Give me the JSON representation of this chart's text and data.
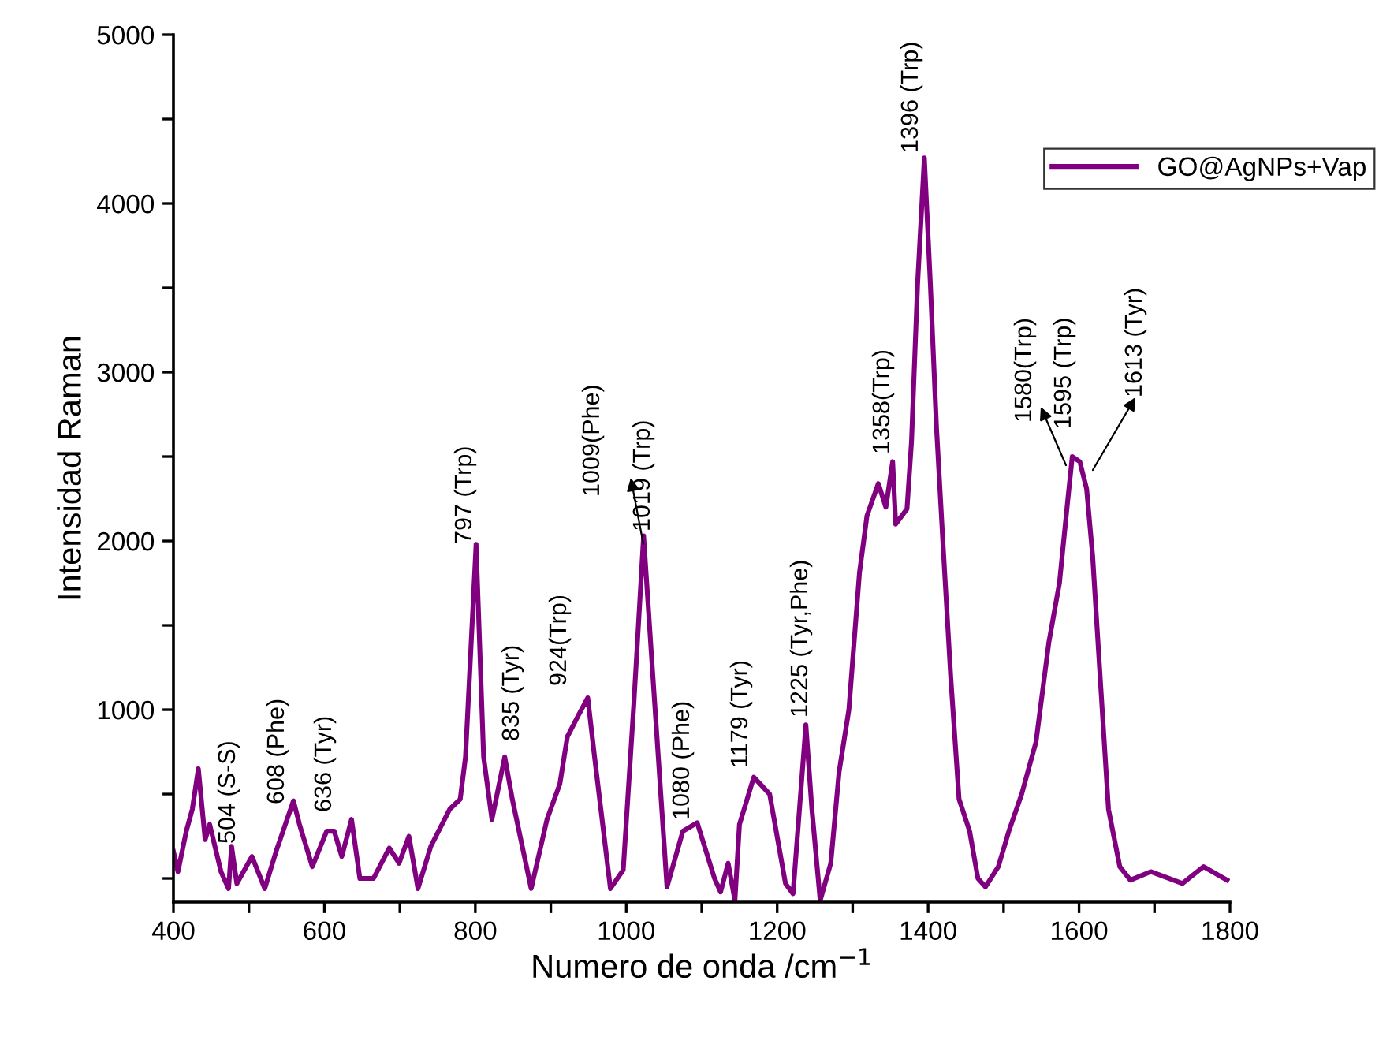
{
  "chart_data": {
    "type": "line",
    "xlabel": "Numero de onda /cm$^{−1}$",
    "ylabel": "Intensidad Raman",
    "xlim": [
      400,
      1800
    ],
    "ylim": [
      -140,
      5000
    ],
    "xticks": [
      400,
      {
        "value": 500,
        "label": null
      },
      600,
      {
        "value": 700,
        "label": null
      },
      800,
      {
        "value": 900,
        "label": null
      },
      1000,
      {
        "value": 1100,
        "label": null
      },
      1200,
      {
        "value": 1300,
        "label": null
      },
      1400,
      {
        "value": 1500,
        "label": null
      },
      1600,
      {
        "value": 1700,
        "label": null
      },
      1800
    ],
    "yticks": [
      {
        "value": 0,
        "label": null
      },
      {
        "value": 500,
        "label": null
      },
      1000,
      {
        "value": 1500,
        "label": null
      },
      2000,
      {
        "value": 2500,
        "label": null
      },
      3000,
      {
        "value": 3500,
        "label": null
      },
      4000,
      {
        "value": 4500,
        "label": null
      },
      5000
    ],
    "grid": false,
    "legend": "top right",
    "marker": "none",
    "line_style": "solid",
    "series": [
      {
        "name": "GO@AgNPs+Vap",
        "color": "#800080",
        "x": [
          400,
          406,
          417,
          425,
          433,
          442,
          448,
          463,
          473,
          477,
          484,
          504,
          521,
          536,
          559,
          567,
          584,
          603,
          613,
          623,
          636,
          647,
          665,
          686,
          699,
          712,
          724,
          741,
          766,
          780,
          787,
          801,
          811,
          822,
          839,
          849,
          874,
          895,
          912,
          922,
          937,
          949,
          958,
          979,
          996,
          1010,
          1023,
          1033,
          1054,
          1075,
          1094,
          1117,
          1125,
          1135,
          1144,
          1150,
          1169,
          1190,
          1211,
          1221,
          1238,
          1246,
          1257,
          1271,
          1282,
          1295,
          1309,
          1319,
          1334,
          1344,
          1353,
          1357,
          1372,
          1378,
          1386,
          1395,
          1403,
          1411,
          1420,
          1430,
          1441,
          1455,
          1466,
          1476,
          1493,
          1507,
          1524,
          1543,
          1560,
          1574,
          1585,
          1591,
          1601,
          1610,
          1618,
          1628,
          1639,
          1654,
          1668,
          1695,
          1737,
          1765,
          1796
        ],
        "values": [
          160,
          40,
          280,
          410,
          650,
          230,
          320,
          40,
          -60,
          190,
          -30,
          130,
          -60,
          160,
          460,
          320,
          70,
          280,
          280,
          130,
          350,
          0,
          0,
          180,
          90,
          250,
          -60,
          190,
          410,
          470,
          720,
          1980,
          720,
          350,
          720,
          470,
          -60,
          350,
          560,
          840,
          970,
          1070,
          720,
          -60,
          50,
          1030,
          2030,
          1350,
          -50,
          280,
          330,
          0,
          -80,
          90,
          -130,
          320,
          600,
          500,
          -30,
          -90,
          910,
          410,
          -130,
          90,
          630,
          1000,
          1810,
          2150,
          2340,
          2200,
          2470,
          2100,
          2190,
          2590,
          3520,
          4270,
          3520,
          2680,
          1960,
          1190,
          470,
          280,
          0,
          -50,
          70,
          280,
          500,
          810,
          1400,
          1750,
          2240,
          2500,
          2470,
          2310,
          1910,
          1190,
          410,
          70,
          -10,
          40,
          -30,
          70,
          -10
        ]
      }
    ],
    "annotations": [
      "504 (S-S)",
      "608 (Phe)",
      "636 (Tyr)",
      "797 (Trp)",
      "835 (Tyr)",
      "924(Trp)",
      "1009(Phe)",
      "1019 (Trp)",
      "1080 (Phe)",
      "1179 (Tyr)",
      "1225 (Tyr,Phe)",
      "1358(Trp)",
      "1396 (Trp)",
      "1580(Trp)",
      "1595 (Trp)",
      "1613 (Tyr)"
    ]
  }
}
